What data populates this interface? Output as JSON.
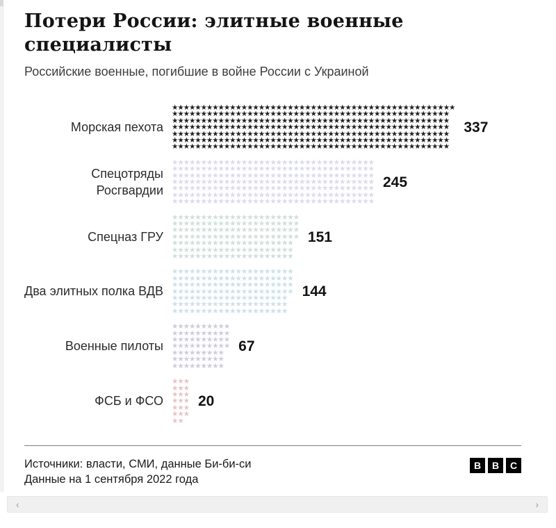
{
  "title": "Потери России: элитные военные специалисты",
  "subtitle": "Российские военные, погибшие в войне России с Украиной",
  "chart_data": {
    "type": "pictogram-bar",
    "unit_glyph": "★",
    "unit_represents": 1,
    "rows_per_group": 7,
    "categories": [
      "Морская пехота",
      "Спецотряды Росгвардии",
      "Спецназ ГРУ",
      "Два элитных полка ВДВ",
      "Военные пилоты",
      "ФСБ и ФСО"
    ],
    "values": [
      337,
      245,
      151,
      144,
      67,
      20
    ],
    "colors": [
      "#1f1f1f",
      "#dbdaee",
      "#cfdfd9",
      "#cde0ea",
      "#cfccda",
      "#e7c4c4"
    ],
    "title": "Потери России: элитные военные специалисты",
    "xlabel": "",
    "ylabel": "",
    "legend": "none",
    "value_labels_shown": true
  },
  "footer": {
    "source_line1": "Источники: власти, СМИ, данные Би-би-си",
    "source_line2": "Данные на 1 сентября 2022 года",
    "logo_letters": [
      "B",
      "B",
      "C"
    ]
  },
  "scrollbar": {
    "left_arrow": "‹",
    "right_arrow": "›"
  }
}
